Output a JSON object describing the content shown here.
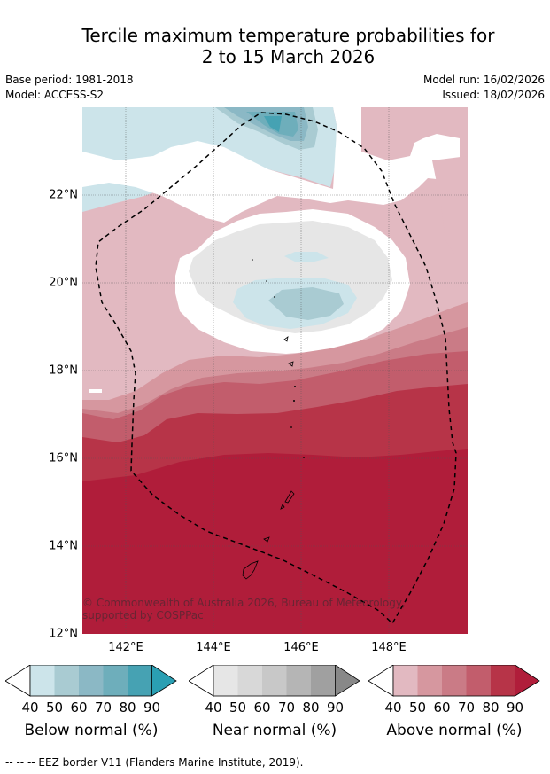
{
  "title": {
    "line1": "Tercile maximum temperature probabilities for",
    "line2": "2 to 15 March 2026"
  },
  "meta": {
    "base_period": "Base period: 1981-2018",
    "model": "Model: ACCESS-S2",
    "model_run": "Model run: 16/02/2026",
    "issued": "Issued: 18/02/2026"
  },
  "map": {
    "lat_ticks": [
      "22°N",
      "20°N",
      "18°N",
      "16°N",
      "14°N",
      "12°N"
    ],
    "lon_ticks": [
      "142°E",
      "144°E",
      "146°E",
      "148°E"
    ],
    "copyright": "© Commonwealth of Australia 2026, Bureau of Meteorology, supported by COSPPac"
  },
  "legend": {
    "below": {
      "name": "Below normal (%)",
      "labels": [
        "40",
        "50",
        "60",
        "70",
        "80",
        "90"
      ],
      "colors": [
        "#cce4ea",
        "#a9cbd2",
        "#8bb8c5",
        "#6eaebb",
        "#46a2b3",
        "#2a9fb3"
      ]
    },
    "near": {
      "name": "Near normal (%)",
      "labels": [
        "40",
        "50",
        "60",
        "70",
        "80",
        "90"
      ],
      "colors": [
        "#e6e6e6",
        "#d8d8d8",
        "#c8c8c8",
        "#b5b5b5",
        "#a0a0a0",
        "#888888"
      ]
    },
    "above": {
      "name": "Above normal (%)",
      "labels": [
        "40",
        "50",
        "60",
        "70",
        "80",
        "90"
      ],
      "colors": [
        "#e2b9c1",
        "#d6979f",
        "#ca7b86",
        "#c25d6c",
        "#b73448",
        "#b01d3a"
      ]
    }
  },
  "footer": "--  --  -- EEZ border V11 (Flanders Marine Institute, 2019)."
}
